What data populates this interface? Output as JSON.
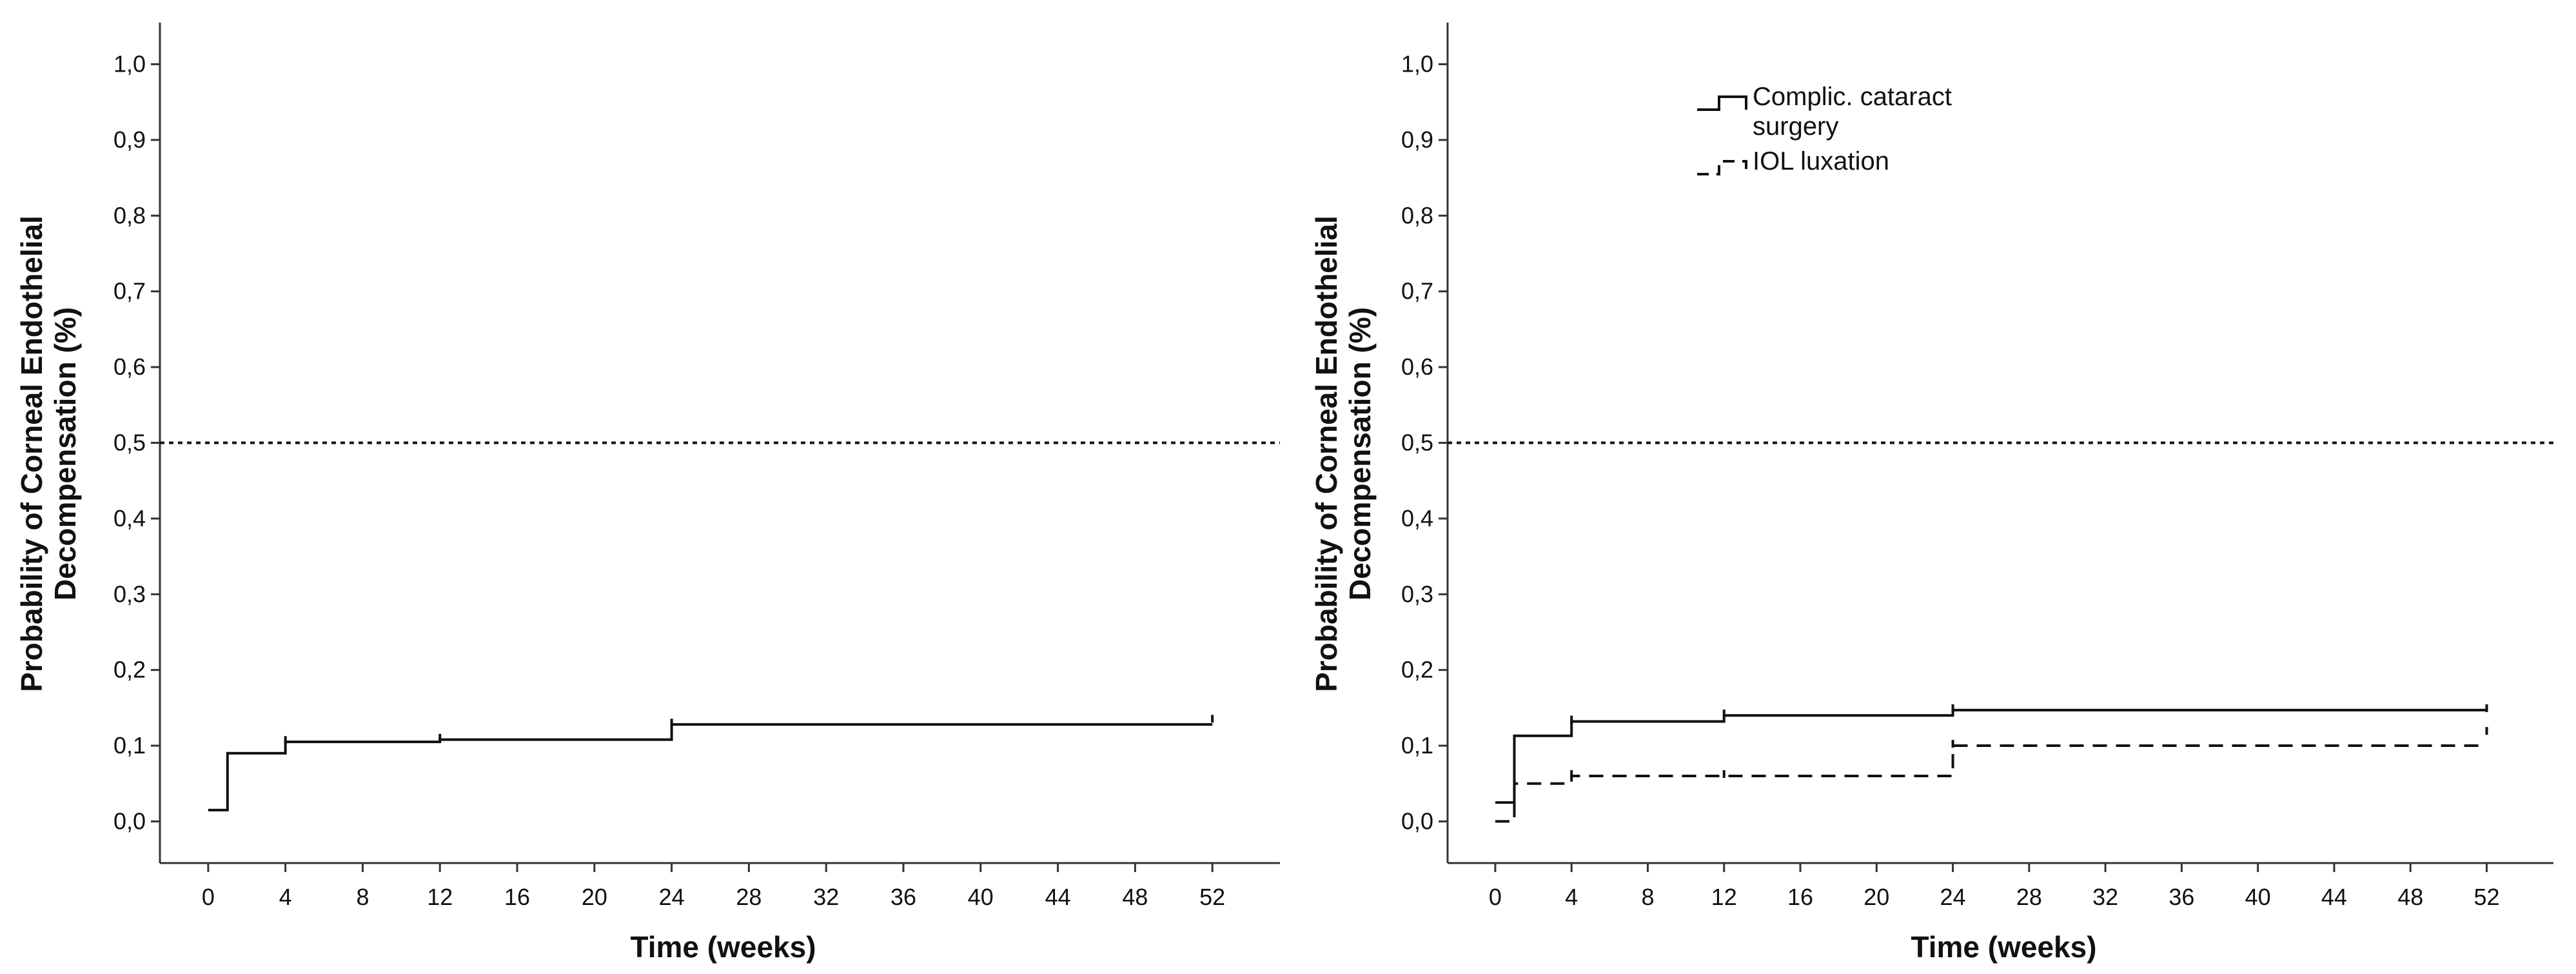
{
  "chart_data": [
    {
      "type": "line",
      "style": "step",
      "xlabel": "Time (weeks)",
      "ylabel": [
        "Probability of Corneal Endothelial",
        "Decompensation (%)"
      ],
      "xticks": [
        0,
        4,
        8,
        12,
        16,
        20,
        24,
        28,
        32,
        36,
        40,
        44,
        48,
        52
      ],
      "yticks": [
        "0,0",
        "0,1",
        "0,2",
        "0,3",
        "0,4",
        "0,5",
        "0,6",
        "0,7",
        "0,8",
        "0,9",
        "1,0"
      ],
      "xlim": [
        -2.5,
        55.5
      ],
      "ylim": [
        -0.055,
        1.055
      ],
      "reference_line": {
        "y": 0.5,
        "style": "dotted"
      },
      "legend": null,
      "series": [
        {
          "style": "solid",
          "steps": [
            [
              0,
              0.015
            ],
            [
              1,
              0.09
            ],
            [
              4,
              0.105
            ],
            [
              12,
              0.108
            ],
            [
              24,
              0.128
            ],
            [
              52,
              0.128
            ]
          ],
          "censor": [
            [
              4,
              0.105
            ],
            [
              12,
              0.108
            ],
            [
              24,
              0.128
            ],
            [
              52,
              0.133
            ]
          ]
        }
      ]
    },
    {
      "type": "line",
      "style": "step",
      "xlabel": "Time (weeks)",
      "ylabel": [
        "Probability of Corneal Endothelial",
        "Decompensation (%)"
      ],
      "xticks": [
        0,
        4,
        8,
        12,
        16,
        20,
        24,
        28,
        32,
        36,
        40,
        44,
        48,
        52
      ],
      "yticks": [
        "0,0",
        "0,1",
        "0,2",
        "0,3",
        "0,4",
        "0,5",
        "0,6",
        "0,7",
        "0,8",
        "0,9",
        "1,0"
      ],
      "xlim": [
        -2.5,
        55.5
      ],
      "ylim": [
        -0.055,
        1.055
      ],
      "reference_line": {
        "y": 0.5,
        "style": "dotted"
      },
      "legend": {
        "position": "top-center",
        "entries": [
          {
            "label": [
              "Complic. cataract",
              "surgery"
            ],
            "style": "solid"
          },
          {
            "label": [
              "IOL luxation"
            ],
            "style": "dashed"
          }
        ]
      },
      "series": [
        {
          "name": "Complic. cataract surgery",
          "style": "solid",
          "steps": [
            [
              0,
              0.025
            ],
            [
              1,
              0.113
            ],
            [
              4,
              0.132
            ],
            [
              12,
              0.14
            ],
            [
              24,
              0.147
            ],
            [
              52,
              0.147
            ]
          ],
          "censor": [
            [
              4,
              0.132
            ],
            [
              12,
              0.14
            ],
            [
              24,
              0.147
            ],
            [
              52,
              0.147
            ]
          ]
        },
        {
          "name": "IOL luxation",
          "style": "dashed",
          "steps": [
            [
              0,
              0.0
            ],
            [
              1,
              0.05
            ],
            [
              4,
              0.06
            ],
            [
              24,
              0.1
            ],
            [
              52,
              0.1
            ]
          ],
          "censor": [
            [
              4,
              0.06
            ],
            [
              12,
              0.06
            ],
            [
              24,
              0.1
            ],
            [
              52,
              0.117
            ]
          ]
        }
      ]
    }
  ]
}
